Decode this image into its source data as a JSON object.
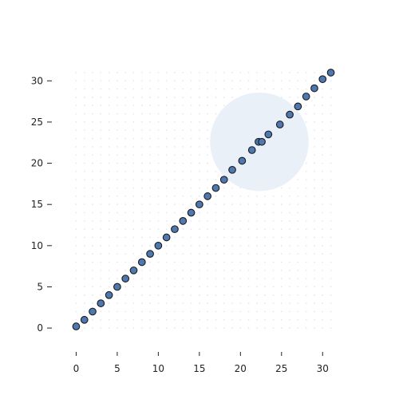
{
  "chart_data": {
    "type": "scatter",
    "title": "",
    "xlabel": "",
    "ylabel": "",
    "xlim": [
      -1.5,
      32.5
    ],
    "ylim": [
      -2.8,
      34
    ],
    "x_ticks": [
      0,
      5,
      10,
      15,
      20,
      25,
      30
    ],
    "y_ticks": [
      0,
      5,
      10,
      15,
      20,
      25,
      30
    ],
    "grid": "dotted-dense",
    "spines": false,
    "series": [
      {
        "x": [
          0,
          1,
          2,
          3,
          4,
          5,
          6,
          7,
          8,
          9,
          10,
          11,
          12,
          13,
          14,
          15,
          16,
          17,
          18,
          19,
          20.2,
          21.4,
          22.2,
          22.6,
          23.4,
          24.8,
          26,
          27,
          28,
          29,
          30,
          31
        ],
        "y": [
          0.2,
          1,
          2,
          3,
          4,
          5,
          6,
          7,
          8,
          9,
          10,
          11,
          12,
          13,
          14,
          15,
          16,
          17,
          18,
          19.2,
          20.3,
          21.6,
          22.6,
          22.6,
          23.5,
          24.7,
          25.9,
          26.9,
          28.1,
          29.1,
          30.2,
          31
        ],
        "marker_color": "#4f78b0",
        "edge_color": "#1a1a1a"
      }
    ],
    "highlight": {
      "x": 22.3,
      "y": 22.6,
      "radius": 6,
      "color": "#e8eef7"
    }
  }
}
